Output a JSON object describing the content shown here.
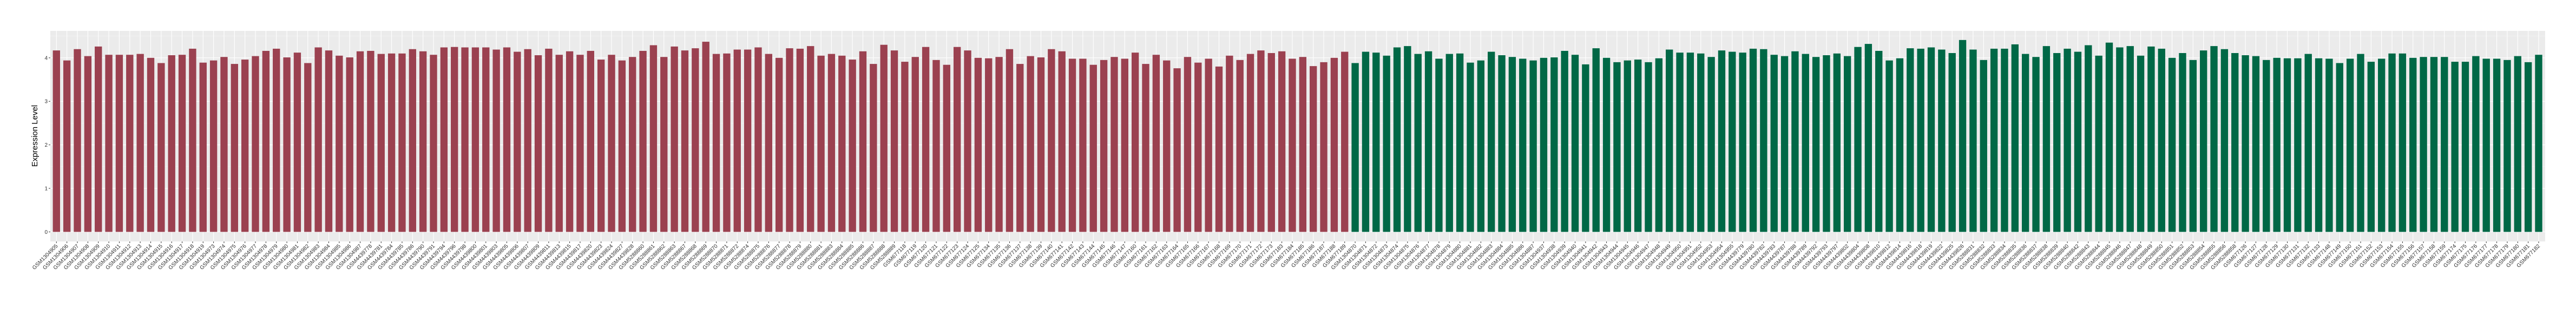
{
  "chart_data": {
    "type": "bar",
    "title": "",
    "xlabel": "",
    "ylabel": "Expression Level",
    "ylim": [
      -0.22,
      4.62
    ],
    "yticks": [
      0,
      1,
      2,
      3,
      4
    ],
    "grid": true,
    "legend": "none",
    "background": "#EBEBEB",
    "series": [
      {
        "color": "#9B4150",
        "categories": [
          "GSM1304905",
          "GSM1304906",
          "GSM1304907",
          "GSM1304908",
          "GSM1304909",
          "GSM1304910",
          "GSM1304911",
          "GSM1304912",
          "GSM1304913",
          "GSM1304914",
          "GSM1304915",
          "GSM1304916",
          "GSM1304917",
          "GSM1304918",
          "GSM1304919",
          "GSM1304973",
          "GSM1304974",
          "GSM1304975",
          "GSM1304976",
          "GSM1304977",
          "GSM1304978",
          "GSM1304979",
          "GSM1304980",
          "GSM1304981",
          "GSM1304982",
          "GSM1304983",
          "GSM1304984",
          "GSM1304985",
          "GSM1304986",
          "GSM1304987",
          "GSM4439778",
          "GSM4439781",
          "GSM4439784",
          "GSM4439785",
          "GSM4439786",
          "GSM4439790",
          "GSM4439791",
          "GSM4439794",
          "GSM4439796",
          "GSM4439798",
          "GSM4439800",
          "GSM4439801",
          "GSM4439803",
          "GSM4439805",
          "GSM4439806",
          "GSM4439807",
          "GSM4439809",
          "GSM4439811",
          "GSM4439813",
          "GSM4439815",
          "GSM4439817",
          "GSM4439820",
          "GSM4439823",
          "GSM4439824",
          "GSM4439827",
          "GSM4439828",
          "GSM5288860",
          "GSM5288861",
          "GSM5288862",
          "GSM5288863",
          "GSM5288867",
          "GSM5288868",
          "GSM5288869",
          "GSM5288870",
          "GSM5288871",
          "GSM5288872",
          "GSM5288874",
          "GSM5288875",
          "GSM5288876",
          "GSM5288877",
          "GSM5288878",
          "GSM5288879",
          "GSM5288880",
          "GSM5288881",
          "GSM5288883",
          "GSM5288884",
          "GSM5288885",
          "GSM5288886",
          "GSM5288887",
          "GSM5288888",
          "GSM5288889",
          "GSM677118",
          "GSM677119",
          "GSM677120",
          "GSM677121",
          "GSM677122",
          "GSM677123",
          "GSM677124",
          "GSM677125",
          "GSM677134",
          "GSM677135",
          "GSM677136",
          "GSM677137",
          "GSM677138",
          "GSM677139",
          "GSM677140",
          "GSM677141",
          "GSM677142",
          "GSM677143",
          "GSM677144",
          "GSM677145",
          "GSM677146",
          "GSM677147",
          "GSM677160",
          "GSM677161",
          "GSM677162",
          "GSM677163",
          "GSM677164",
          "GSM677165",
          "GSM677166",
          "GSM677167",
          "GSM677168",
          "GSM677169",
          "GSM677170",
          "GSM677171",
          "GSM677172",
          "GSM677173",
          "GSM677183",
          "GSM677184",
          "GSM677185",
          "GSM677186",
          "GSM677187",
          "GSM677188",
          "GSM677189"
        ],
        "values": [
          4.17,
          3.94,
          4.2,
          4.04,
          4.26,
          4.07,
          4.07,
          4.07,
          4.09,
          4.0,
          3.88,
          4.06,
          4.07,
          4.21,
          3.89,
          3.94,
          4.02,
          3.86,
          3.96,
          4.04,
          4.16,
          4.21,
          4.01,
          4.12,
          3.88,
          4.24,
          4.17,
          4.05,
          4.01,
          4.15,
          4.16,
          4.09,
          4.1,
          4.1,
          4.2,
          4.15,
          4.07,
          4.24,
          4.25,
          4.24,
          4.24,
          4.24,
          4.19,
          4.24,
          4.14,
          4.2,
          4.06,
          4.21,
          4.07,
          4.15,
          4.07,
          4.16,
          3.96,
          4.07,
          3.94,
          4.02,
          4.16,
          4.29,
          4.02,
          4.26,
          4.17,
          4.22,
          4.37,
          4.09,
          4.1,
          4.19,
          4.19,
          4.24,
          4.09,
          4.0,
          4.22,
          4.21,
          4.27,
          4.05,
          4.09,
          4.05,
          3.96,
          4.15,
          3.86,
          4.3,
          4.17,
          3.91,
          4.02,
          4.25,
          3.95,
          3.84,
          4.25,
          4.17,
          4.0,
          3.99,
          4.02,
          4.2,
          3.86,
          4.04,
          4.01,
          4.2,
          4.15,
          3.98,
          3.98,
          3.84,
          3.95,
          4.02,
          3.98,
          4.12,
          3.86,
          4.07,
          3.94,
          3.76,
          4.02,
          3.89,
          3.98,
          3.8,
          4.05,
          3.95,
          4.09,
          4.17,
          4.11,
          4.15,
          3.98,
          4.02,
          3.81,
          3.9,
          4.0,
          4.14
        ]
      },
      {
        "color": "#006846",
        "categories": [
          "GSM1304870",
          "GSM1304871",
          "GSM1304872",
          "GSM1304873",
          "GSM1304874",
          "GSM1304875",
          "GSM1304876",
          "GSM1304877",
          "GSM1304878",
          "GSM1304879",
          "GSM1304880",
          "GSM1304881",
          "GSM1304882",
          "GSM1304883",
          "GSM1304884",
          "GSM1304885",
          "GSM1304886",
          "GSM1304887",
          "GSM1304937",
          "GSM1304938",
          "GSM1304939",
          "GSM1304940",
          "GSM1304941",
          "GSM1304942",
          "GSM1304943",
          "GSM1304944",
          "GSM1304945",
          "GSM1304946",
          "GSM1304947",
          "GSM1304948",
          "GSM1304949",
          "GSM1304950",
          "GSM1304951",
          "GSM1304952",
          "GSM1304953",
          "GSM1304954",
          "GSM1304955",
          "GSM4439779",
          "GSM4439780",
          "GSM4439782",
          "GSM4439783",
          "GSM4439787",
          "GSM4439788",
          "GSM4439789",
          "GSM4439792",
          "GSM4439793",
          "GSM4439797",
          "GSM4439802",
          "GSM4439804",
          "GSM4439808",
          "GSM4439810",
          "GSM4439812",
          "GSM4439814",
          "GSM4439816",
          "GSM4439818",
          "GSM4439819",
          "GSM4439822",
          "GSM4439825",
          "GSM4439826",
          "GSM5288831",
          "GSM5288832",
          "GSM5288833",
          "GSM5288834",
          "GSM5288835",
          "GSM5288836",
          "GSM5288837",
          "GSM5288838",
          "GSM5288839",
          "GSM5288840",
          "GSM5288842",
          "GSM5288843",
          "GSM5288844",
          "GSM5288845",
          "GSM5288846",
          "GSM5288847",
          "GSM5288848",
          "GSM5288849",
          "GSM5288850",
          "GSM5288851",
          "GSM5288852",
          "GSM5288853",
          "GSM5288854",
          "GSM5288855",
          "GSM5288856",
          "GSM5288858",
          "GSM677126",
          "GSM677127",
          "GSM677128",
          "GSM677129",
          "GSM677130",
          "GSM677131",
          "GSM677132",
          "GSM677133",
          "GSM677148",
          "GSM677149",
          "GSM677150",
          "GSM677151",
          "GSM677152",
          "GSM677153",
          "GSM677154",
          "GSM677155",
          "GSM677156",
          "GSM677157",
          "GSM677158",
          "GSM677159",
          "GSM677174",
          "GSM677175",
          "GSM677176",
          "GSM677177",
          "GSM677178",
          "GSM677179",
          "GSM677180",
          "GSM677181",
          "GSM677182"
        ],
        "values": [
          3.88,
          4.14,
          4.12,
          4.05,
          4.24,
          4.27,
          4.09,
          4.15,
          3.98,
          4.09,
          4.1,
          3.89,
          3.94,
          4.14,
          4.06,
          4.02,
          3.98,
          3.94,
          4.0,
          4.01,
          4.16,
          4.07,
          3.85,
          4.22,
          4.0,
          3.9,
          3.94,
          3.96,
          3.9,
          3.99,
          4.19,
          4.12,
          4.12,
          4.1,
          4.02,
          4.17,
          4.14,
          4.12,
          4.21,
          4.2,
          4.07,
          4.04,
          4.15,
          4.09,
          4.02,
          4.06,
          4.1,
          4.04,
          4.25,
          4.32,
          4.16,
          3.94,
          3.99,
          4.22,
          4.21,
          4.24,
          4.19,
          4.11,
          4.41,
          4.19,
          3.95,
          4.21,
          4.21,
          4.31,
          4.09,
          4.02,
          4.27,
          4.11,
          4.21,
          4.14,
          4.29,
          4.05,
          4.35,
          4.24,
          4.27,
          4.05,
          4.26,
          4.21,
          4.0,
          4.11,
          3.95,
          4.17,
          4.27,
          4.2,
          4.11,
          4.06,
          4.04,
          3.95,
          4.0,
          3.99,
          3.99,
          4.09,
          3.99,
          3.98,
          3.88,
          3.98,
          4.09,
          3.91,
          3.98,
          4.1,
          4.1,
          4.0,
          4.02,
          4.02,
          4.02,
          3.91,
          3.91,
          4.04,
          3.98,
          3.98,
          3.95,
          4.04,
          3.9,
          4.07
        ]
      }
    ]
  }
}
